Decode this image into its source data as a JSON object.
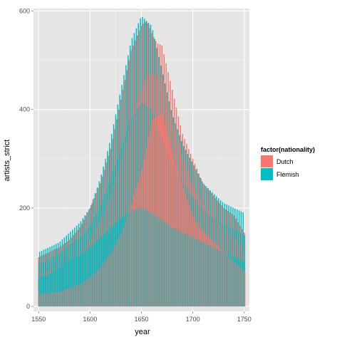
{
  "chart_data": {
    "type": "bar",
    "x_label": "year",
    "y_label": "artists_strict",
    "x_range": [
      1545,
      1755
    ],
    "y_range": [
      -10,
      605
    ],
    "x_ticks": [
      1550,
      1600,
      1650,
      1700,
      1750
    ],
    "y_ticks": [
      0,
      200,
      400,
      600
    ],
    "legend": {
      "title": "factor(nationality)",
      "position": "right",
      "entries": [
        {
          "label": "Dutch",
          "color": "#F8766D"
        },
        {
          "label": "Flemish",
          "color": "#00BFC4"
        }
      ]
    },
    "grid": true,
    "background": "#E5E5E5",
    "series": [
      {
        "name": "Dutch",
        "color": "#F8766D",
        "upper_envelope": {
          "x": [
            1550,
            1560,
            1570,
            1580,
            1590,
            1600,
            1610,
            1620,
            1630,
            1640,
            1650,
            1655,
            1660,
            1665,
            1670,
            1680,
            1690,
            1700,
            1710,
            1720,
            1730,
            1740,
            1750
          ],
          "y": [
            100,
            110,
            120,
            135,
            160,
            200,
            250,
            320,
            420,
            520,
            570,
            580,
            555,
            535,
            530,
            440,
            350,
            300,
            250,
            225,
            200,
            185,
            150
          ]
        },
        "mid_band": {
          "x": [
            1550,
            1570,
            1590,
            1600,
            1610,
            1620,
            1630,
            1640,
            1650,
            1660,
            1670,
            1680,
            1690,
            1700,
            1710,
            1720,
            1730,
            1740,
            1750
          ],
          "y": [
            25,
            30,
            45,
            60,
            80,
            110,
            150,
            210,
            280,
            380,
            390,
            300,
            240,
            180,
            150,
            130,
            110,
            90,
            70
          ]
        }
      },
      {
        "name": "Flemish",
        "color": "#00BFC4",
        "upper_envelope": {
          "x": [
            1550,
            1560,
            1570,
            1580,
            1590,
            1600,
            1610,
            1620,
            1630,
            1640,
            1650,
            1660,
            1670,
            1680,
            1690,
            1700,
            1710,
            1720,
            1730,
            1740,
            1750
          ],
          "y": [
            110,
            120,
            130,
            150,
            170,
            200,
            260,
            340,
            440,
            540,
            590,
            570,
            480,
            390,
            330,
            290,
            250,
            230,
            210,
            200,
            190
          ]
        },
        "mid_band": {
          "x": [
            1550,
            1560,
            1570,
            1580,
            1590,
            1600,
            1610,
            1620,
            1630,
            1640,
            1650,
            1660,
            1670,
            1680,
            1690,
            1700,
            1710,
            1720,
            1730,
            1740,
            1750
          ],
          "y": [
            60,
            65,
            80,
            95,
            105,
            120,
            140,
            160,
            180,
            195,
            200,
            190,
            175,
            160,
            150,
            140,
            130,
            120,
            110,
            100,
            90
          ]
        }
      }
    ]
  }
}
